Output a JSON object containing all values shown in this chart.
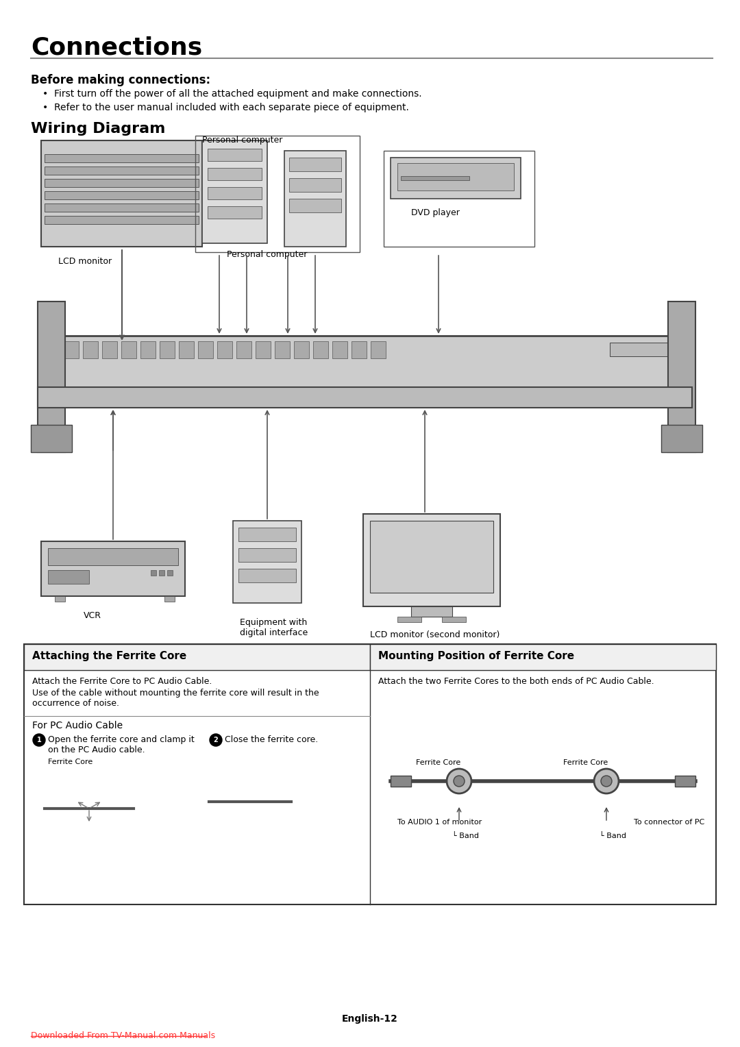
{
  "title": "Connections",
  "subtitle": "Before making connections:",
  "bullet1": "First turn off the power of all the attached equipment and make connections.",
  "bullet2": "Refer to the user manual included with each separate piece of equipment.",
  "wiring_title": "Wiring Diagram",
  "label_lcd": "LCD monitor",
  "label_pc": "Personal computer",
  "label_dvd": "DVD player",
  "label_pc2": "Personal computer",
  "label_vcr": "VCR",
  "label_equip": "Equipment with\ndigital interface",
  "label_lcd2": "LCD monitor (second monitor)",
  "ferrite_title_left": "Attaching the Ferrite Core",
  "ferrite_title_right": "Mounting Position of Ferrite Core",
  "ferrite_text1": "Attach the Ferrite Core to PC Audio Cable.",
  "ferrite_text2": "Use of the cable without mounting the ferrite core will result in the\noccurrence of noise.",
  "pc_audio_label": "For PC Audio Cable",
  "step1_text": "Open the ferrite core and clamp it\non the PC Audio cable.",
  "step2_text": "Close the ferrite core.",
  "ferrite_core_label": "Ferrite Core",
  "mount_text": "Attach the two Ferrite Cores to the both ends of PC Audio Cable.",
  "mount_fc1": "Ferrite Core",
  "mount_fc2": "Ferrite Core",
  "mount_audio": "To AUDIO 1 of monitor",
  "mount_band1": "Band",
  "mount_band2": "Band",
  "mount_pc": "To connector of PC",
  "footer_center": "English-12",
  "footer_link": "Downloaded From TV-Manual.com Manuals",
  "bg_color": "#ffffff",
  "text_color": "#000000",
  "link_color": "#ff3333",
  "line_color": "#888888",
  "box_color": "#333333"
}
